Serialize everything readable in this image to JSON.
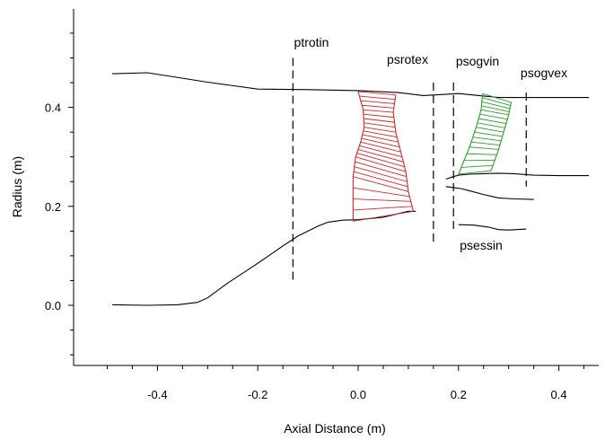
{
  "chart_data": {
    "type": "line",
    "title": "",
    "xlabel": "Axial Distance (m)",
    "ylabel": "Radius (m)",
    "xlim": [
      -0.52,
      0.46
    ],
    "ylim": [
      -0.125,
      0.6
    ],
    "grid": false,
    "x_ticks": [
      -0.4,
      -0.2,
      0.0,
      0.2,
      0.4
    ],
    "x_tick_labels": [
      "-0.4",
      "-0.2",
      "0.0",
      "0.2",
      "0.4"
    ],
    "y_ticks": [
      0.0,
      0.2,
      0.4
    ],
    "y_tick_labels": [
      "0.0",
      "0.2",
      "0.4"
    ],
    "series": [
      {
        "role": "shroud",
        "color": "#000000",
        "x": [
          -0.49,
          -0.42,
          -0.3,
          -0.2,
          -0.1,
          0.0,
          0.08,
          0.13,
          0.2,
          0.28,
          0.36,
          0.46
        ],
        "y": [
          0.468,
          0.47,
          0.451,
          0.437,
          0.436,
          0.434,
          0.43,
          0.424,
          0.428,
          0.42,
          0.42,
          0.42
        ]
      },
      {
        "role": "hub",
        "color": "#000000",
        "x": [
          -0.49,
          -0.42,
          -0.36,
          -0.32,
          -0.3,
          -0.26,
          -0.2,
          -0.15,
          -0.12,
          -0.08,
          -0.06,
          -0.03,
          0.0,
          0.05,
          0.1,
          0.115
        ],
        "y": [
          0.001,
          0.0,
          0.001,
          0.006,
          0.015,
          0.045,
          0.085,
          0.12,
          0.14,
          0.16,
          0.168,
          0.172,
          0.173,
          0.178,
          0.19,
          0.19
        ]
      },
      {
        "role": "splitter-upper",
        "color": "#000000",
        "x": [
          0.175,
          0.19,
          0.2,
          0.22,
          0.25,
          0.28,
          0.31,
          0.35,
          0.4,
          0.46
        ],
        "y": [
          0.255,
          0.26,
          0.263,
          0.265,
          0.266,
          0.267,
          0.266,
          0.263,
          0.262,
          0.262
        ]
      },
      {
        "role": "splitter-lower",
        "color": "#000000",
        "x": [
          0.175,
          0.19,
          0.205,
          0.22,
          0.25,
          0.28,
          0.31,
          0.35
        ],
        "y": [
          0.24,
          0.238,
          0.236,
          0.232,
          0.224,
          0.217,
          0.215,
          0.214
        ]
      },
      {
        "role": "core-inner-wall",
        "color": "#000000",
        "x": [
          0.2,
          0.23,
          0.26,
          0.28,
          0.3,
          0.335
        ],
        "y": [
          0.163,
          0.162,
          0.158,
          0.153,
          0.152,
          0.154
        ]
      },
      {
        "role": "rotor-blade",
        "color": "#d62728",
        "hatch_count": 24,
        "leading_edge": {
          "x": [
            0.0,
            0.01,
            0.012,
            0.005,
            -0.005,
            -0.01,
            -0.01
          ],
          "y": [
            0.432,
            0.395,
            0.36,
            0.33,
            0.3,
            0.26,
            0.17
          ]
        },
        "trailing_edge": {
          "x": [
            0.075,
            0.07,
            0.075,
            0.085,
            0.095,
            0.1,
            0.11
          ],
          "y": [
            0.425,
            0.39,
            0.35,
            0.31,
            0.27,
            0.23,
            0.19
          ]
        }
      },
      {
        "role": "stator-vane",
        "color": "#2ca02c",
        "hatch_count": 16,
        "leading_edge": {
          "x": [
            0.248,
            0.245,
            0.235,
            0.222,
            0.2
          ],
          "y": [
            0.428,
            0.395,
            0.36,
            0.32,
            0.265
          ]
        },
        "trailing_edge": {
          "x": [
            0.305,
            0.3,
            0.29,
            0.28,
            0.265
          ],
          "y": [
            0.41,
            0.385,
            0.35,
            0.315,
            0.272
          ]
        }
      }
    ],
    "stations": [
      {
        "name": "ptrotin",
        "x": -0.13,
        "y0": 0.05,
        "y1": 0.5
      },
      {
        "name": "psrotex",
        "x": 0.15,
        "y0": 0.12,
        "y1": 0.45
      },
      {
        "name": "psogvin",
        "x": 0.19,
        "y0": 0.15,
        "y1": 0.45
      },
      {
        "name": "psogvex",
        "x": 0.335,
        "y0": 0.24,
        "y1": 0.43
      }
    ],
    "annotations": [
      {
        "text": "ptrotin"
      },
      {
        "text": "psrotex"
      },
      {
        "text": "psogvin"
      },
      {
        "text": "psogvex"
      },
      {
        "text": "psessin"
      }
    ]
  }
}
